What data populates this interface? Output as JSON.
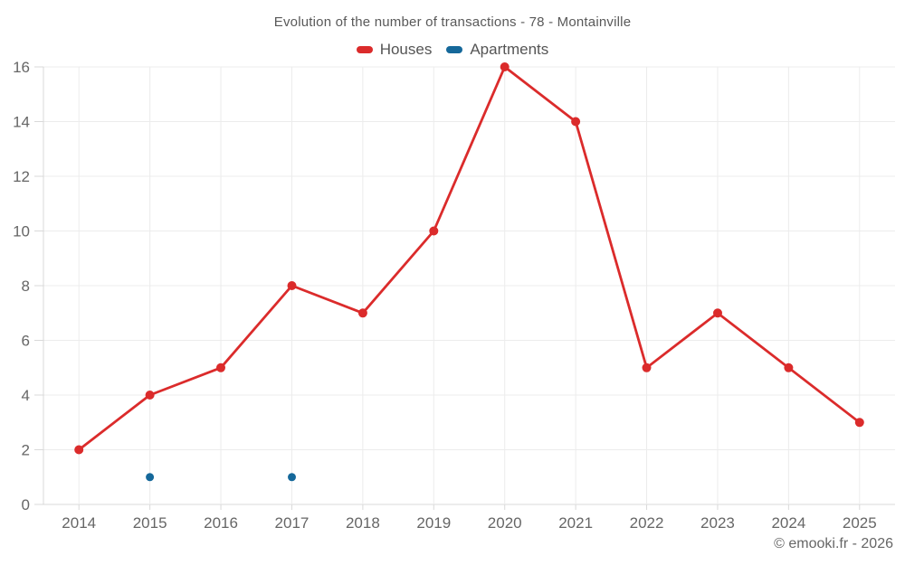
{
  "title": "Evolution of the number of transactions - 78 - Montainville",
  "footer": "© emooki.fr - 2026",
  "colors": {
    "houses": "#db2b2b",
    "apartments": "#15689a",
    "grid": "#ececec",
    "axis_line": "#d9d9d9",
    "axis_text": "#666666",
    "background": "#ffffff"
  },
  "legend": [
    {
      "label": "Houses",
      "color_key": "houses"
    },
    {
      "label": "Apartments",
      "color_key": "apartments"
    }
  ],
  "chart_data": {
    "type": "line",
    "title": "Evolution of the number of transactions - 78 - Montainville",
    "xlabel": "",
    "ylabel": "",
    "categories": [
      "2014",
      "2015",
      "2016",
      "2017",
      "2018",
      "2019",
      "2020",
      "2021",
      "2022",
      "2023",
      "2024",
      "2025"
    ],
    "series": [
      {
        "name": "Houses",
        "color_key": "houses",
        "draw_line": true,
        "values": [
          2,
          4,
          5,
          8,
          7,
          10,
          16,
          14,
          5,
          7,
          5,
          3
        ]
      },
      {
        "name": "Apartments",
        "color_key": "apartments",
        "draw_line": false,
        "values": [
          null,
          1,
          null,
          1,
          null,
          null,
          null,
          null,
          null,
          null,
          null,
          null
        ]
      }
    ],
    "ylim": [
      0,
      16
    ],
    "ytick_step": 2,
    "grid": true,
    "legend_position": "top"
  }
}
